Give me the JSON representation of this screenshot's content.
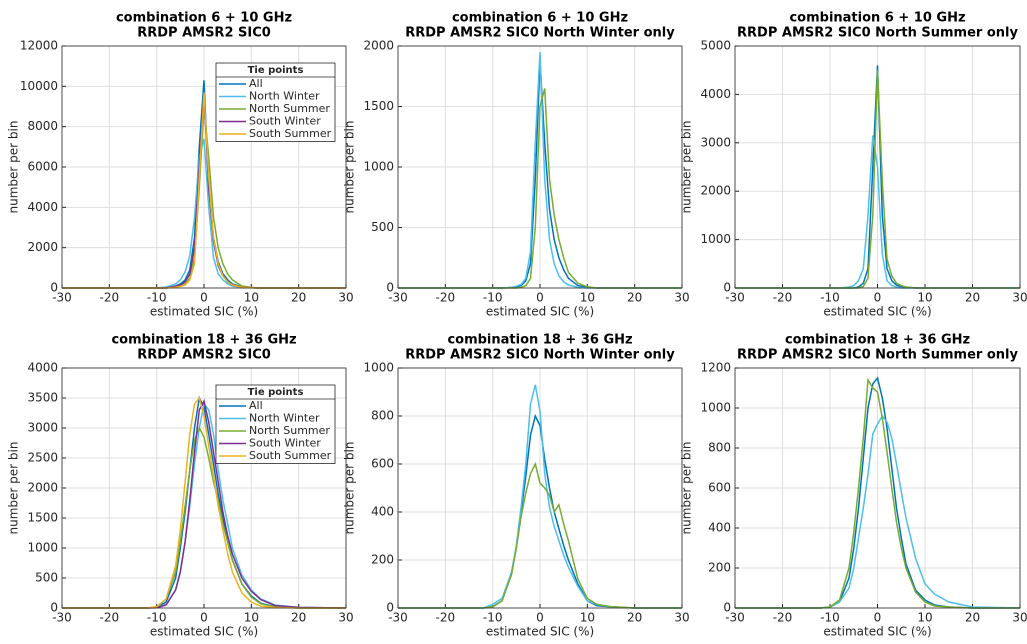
{
  "chart_data": [
    {
      "type": "line",
      "title": [
        "combination 6 + 10 GHz",
        "RRDP AMSR2 SIC0"
      ],
      "xlabel": "estimated SIC (%)",
      "ylabel": "number per bin",
      "x": [
        -30,
        -20,
        -12,
        -10,
        -8,
        -6,
        -5,
        -4,
        -3,
        -2,
        -1,
        0,
        1,
        2,
        3,
        4,
        5,
        6,
        8,
        10,
        12,
        15,
        20,
        30
      ],
      "xlim": [
        -30,
        30
      ],
      "xticks": [
        -30,
        -20,
        -10,
        0,
        10,
        20,
        30
      ],
      "ylim": [
        0,
        12000
      ],
      "yticks": [
        0,
        2000,
        4000,
        6000,
        8000,
        10000,
        12000
      ],
      "grid": true,
      "legend": true,
      "legend_title": "Tie points",
      "series": [
        {
          "name": "All",
          "color": "#0072bd",
          "values": [
            0,
            0,
            0,
            0,
            20,
            100,
            200,
            400,
            900,
            2500,
            7000,
            10300,
            5000,
            2500,
            1300,
            700,
            400,
            200,
            60,
            20,
            0,
            0,
            0,
            0
          ]
        },
        {
          "name": "North Winter",
          "color": "#4dbeee",
          "values": [
            0,
            0,
            0,
            0,
            50,
            200,
            400,
            800,
            1600,
            3500,
            6500,
            7400,
            4000,
            1500,
            700,
            400,
            200,
            100,
            30,
            10,
            0,
            0,
            0,
            0
          ]
        },
        {
          "name": "North Summer",
          "color": "#77ac30",
          "values": [
            0,
            0,
            0,
            0,
            0,
            50,
            100,
            200,
            500,
            1500,
            5000,
            9000,
            6500,
            3500,
            2000,
            1200,
            700,
            400,
            100,
            30,
            0,
            0,
            0,
            0
          ]
        },
        {
          "name": "South Winter",
          "color": "#7e2f8e",
          "values": [
            0,
            0,
            0,
            0,
            0,
            80,
            150,
            300,
            700,
            2000,
            6000,
            9600,
            5000,
            2300,
            1100,
            600,
            300,
            150,
            40,
            10,
            0,
            0,
            0,
            0
          ]
        },
        {
          "name": "South Summer",
          "color": "#edb120",
          "values": [
            0,
            0,
            0,
            0,
            0,
            40,
            80,
            150,
            400,
            1200,
            5500,
            9700,
            5500,
            2500,
            1200,
            600,
            300,
            150,
            40,
            10,
            0,
            0,
            0,
            0
          ]
        }
      ]
    },
    {
      "type": "line",
      "title": [
        "combination 6 + 10 GHz",
        "RRDP AMSR2 SIC0 North Winter only"
      ],
      "xlabel": "estimated SIC (%)",
      "ylabel": "number per bin",
      "x": [
        -30,
        -20,
        -12,
        -10,
        -8,
        -6,
        -5,
        -4,
        -3,
        -2,
        -1,
        0,
        1,
        2,
        3,
        4,
        5,
        6,
        8,
        10,
        12,
        15,
        20,
        30
      ],
      "xlim": [
        -30,
        30
      ],
      "xticks": [
        -30,
        -20,
        -10,
        0,
        10,
        20,
        30
      ],
      "ylim": [
        0,
        2000
      ],
      "yticks": [
        0,
        500,
        1000,
        1500,
        2000
      ],
      "grid": true,
      "legend": false,
      "series": [
        {
          "color": "#0072bd",
          "values": [
            0,
            0,
            0,
            0,
            0,
            5,
            10,
            20,
            60,
            200,
            900,
            1880,
            1200,
            650,
            400,
            250,
            150,
            80,
            20,
            5,
            0,
            0,
            0,
            0
          ]
        },
        {
          "color": "#4dbeee",
          "values": [
            0,
            0,
            0,
            0,
            0,
            5,
            15,
            30,
            80,
            300,
            1200,
            1950,
            900,
            400,
            200,
            100,
            50,
            25,
            5,
            0,
            0,
            0,
            0,
            0
          ]
        },
        {
          "color": "#77ac30",
          "values": [
            0,
            0,
            0,
            0,
            0,
            0,
            0,
            5,
            20,
            80,
            500,
            1500,
            1650,
            900,
            600,
            400,
            250,
            130,
            40,
            10,
            0,
            0,
            0,
            0
          ]
        }
      ]
    },
    {
      "type": "line",
      "title": [
        "combination 6 + 10 GHz",
        "RRDP AMSR2 SIC0 North Summer only"
      ],
      "xlabel": "estimated SIC (%)",
      "ylabel": "number per bin",
      "x": [
        -30,
        -20,
        -12,
        -10,
        -8,
        -6,
        -5,
        -4,
        -3,
        -2,
        -1,
        0,
        1,
        2,
        3,
        4,
        5,
        6,
        8,
        10,
        12,
        15,
        20,
        30
      ],
      "xlim": [
        -30,
        30
      ],
      "xticks": [
        -30,
        -20,
        -10,
        0,
        10,
        20,
        30
      ],
      "ylim": [
        0,
        5000
      ],
      "yticks": [
        0,
        1000,
        2000,
        3000,
        4000,
        5000
      ],
      "grid": true,
      "legend": false,
      "series": [
        {
          "color": "#0072bd",
          "values": [
            0,
            0,
            0,
            0,
            0,
            0,
            0,
            20,
            100,
            400,
            2500,
            4600,
            1500,
            400,
            150,
            60,
            30,
            15,
            0,
            0,
            0,
            0,
            0,
            0
          ]
        },
        {
          "color": "#4dbeee",
          "values": [
            0,
            0,
            0,
            0,
            0,
            20,
            50,
            150,
            400,
            1500,
            3150,
            2500,
            700,
            150,
            50,
            20,
            0,
            0,
            0,
            0,
            0,
            0,
            0,
            0
          ]
        },
        {
          "color": "#77ac30",
          "values": [
            0,
            0,
            0,
            0,
            0,
            0,
            0,
            0,
            30,
            200,
            1500,
            4500,
            2200,
            600,
            250,
            100,
            50,
            20,
            0,
            0,
            0,
            0,
            0,
            0
          ]
        }
      ]
    },
    {
      "type": "line",
      "title": [
        "combination 18 + 36 GHz",
        "RRDP AMSR2 SIC0"
      ],
      "xlabel": "estimated SIC (%)",
      "ylabel": "number per bin",
      "x": [
        -30,
        -20,
        -12,
        -10,
        -8,
        -6,
        -5,
        -4,
        -3,
        -2,
        -1,
        0,
        1,
        2,
        3,
        4,
        5,
        6,
        8,
        10,
        12,
        15,
        20,
        30
      ],
      "xlim": [
        -30,
        30
      ],
      "xticks": [
        -30,
        -20,
        -10,
        0,
        10,
        20,
        30
      ],
      "ylim": [
        0,
        4000
      ],
      "yticks": [
        0,
        500,
        1000,
        1500,
        2000,
        2500,
        3000,
        3500,
        4000
      ],
      "grid": true,
      "legend": true,
      "legend_title": "Tie points",
      "series": [
        {
          "name": "All",
          "color": "#0072bd",
          "values": [
            0,
            0,
            0,
            10,
            100,
            500,
            1000,
            1600,
            2300,
            3000,
            3500,
            3350,
            2900,
            2400,
            1900,
            1500,
            1100,
            800,
            400,
            200,
            80,
            20,
            0,
            0
          ]
        },
        {
          "name": "North Winter",
          "color": "#4dbeee",
          "values": [
            0,
            0,
            0,
            10,
            60,
            300,
            600,
            1100,
            1700,
            2400,
            3000,
            3400,
            3300,
            2900,
            2300,
            1800,
            1400,
            1000,
            550,
            300,
            150,
            50,
            10,
            0
          ]
        },
        {
          "name": "North Summer",
          "color": "#77ac30",
          "values": [
            0,
            0,
            0,
            20,
            150,
            600,
            1100,
            1700,
            2300,
            2800,
            3000,
            2850,
            2500,
            2100,
            1800,
            1400,
            1100,
            800,
            400,
            180,
            70,
            20,
            0,
            0
          ]
        },
        {
          "name": "South Winter",
          "color": "#7e2f8e",
          "values": [
            0,
            0,
            0,
            5,
            50,
            300,
            600,
            1100,
            1800,
            2600,
            3300,
            3450,
            3100,
            2600,
            2100,
            1600,
            1200,
            900,
            500,
            280,
            140,
            40,
            10,
            0
          ]
        },
        {
          "name": "South Summer",
          "color": "#edb120",
          "values": [
            0,
            0,
            0,
            20,
            150,
            700,
            1300,
            2100,
            2900,
            3400,
            3500,
            3200,
            2700,
            2200,
            1700,
            1300,
            900,
            600,
            250,
            100,
            30,
            10,
            0,
            0
          ]
        }
      ]
    },
    {
      "type": "line",
      "title": [
        "combination 18 + 36 GHz",
        "RRDP AMSR2 SIC0 North Winter only"
      ],
      "xlabel": "estimated SIC (%)",
      "ylabel": "number per bin",
      "x": [
        -30,
        -20,
        -12,
        -10,
        -8,
        -6,
        -5,
        -4,
        -3,
        -2,
        -1,
        0,
        1,
        2,
        3,
        4,
        5,
        6,
        8,
        10,
        12,
        15,
        20,
        30
      ],
      "xlim": [
        -30,
        30
      ],
      "xticks": [
        -30,
        -20,
        -10,
        0,
        10,
        20,
        30
      ],
      "ylim": [
        0,
        1000
      ],
      "yticks": [
        0,
        200,
        400,
        600,
        800,
        1000
      ],
      "grid": true,
      "legend": false,
      "series": [
        {
          "color": "#0072bd",
          "values": [
            0,
            0,
            0,
            5,
            30,
            150,
            250,
            400,
            550,
            720,
            800,
            760,
            620,
            500,
            400,
            330,
            260,
            200,
            100,
            30,
            10,
            5,
            0,
            0
          ]
        },
        {
          "color": "#4dbeee",
          "values": [
            0,
            0,
            0,
            15,
            40,
            150,
            260,
            420,
            600,
            850,
            930,
            820,
            560,
            420,
            340,
            280,
            220,
            170,
            90,
            30,
            15,
            5,
            0,
            0
          ]
        },
        {
          "color": "#77ac30",
          "values": [
            0,
            0,
            0,
            5,
            30,
            140,
            250,
            380,
            480,
            560,
            600,
            520,
            500,
            470,
            400,
            430,
            350,
            280,
            120,
            40,
            15,
            5,
            0,
            0
          ]
        }
      ]
    },
    {
      "type": "line",
      "title": [
        "combination 18 + 36 GHz",
        "RRDP AMSR2 SIC0 North Summer only"
      ],
      "xlabel": "estimated SIC (%)",
      "ylabel": "number per bin",
      "x": [
        -30,
        -20,
        -12,
        -10,
        -8,
        -6,
        -5,
        -4,
        -3,
        -2,
        -1,
        0,
        1,
        2,
        3,
        4,
        5,
        6,
        8,
        10,
        12,
        15,
        20,
        30
      ],
      "xlim": [
        -30,
        30
      ],
      "xticks": [
        -30,
        -20,
        -10,
        0,
        10,
        20,
        30
      ],
      "ylim": [
        0,
        1200
      ],
      "yticks": [
        0,
        200,
        400,
        600,
        800,
        1000,
        1200
      ],
      "grid": true,
      "legend": false,
      "series": [
        {
          "color": "#0072bd",
          "values": [
            0,
            0,
            0,
            5,
            30,
            150,
            300,
            500,
            750,
            1000,
            1120,
            1150,
            1050,
            900,
            700,
            500,
            350,
            220,
            90,
            40,
            15,
            5,
            0,
            0
          ]
        },
        {
          "color": "#4dbeee",
          "values": [
            0,
            0,
            0,
            5,
            30,
            100,
            200,
            350,
            500,
            670,
            870,
            920,
            960,
            930,
            850,
            720,
            580,
            450,
            250,
            120,
            70,
            30,
            5,
            0
          ]
        },
        {
          "color": "#77ac30",
          "values": [
            0,
            0,
            0,
            5,
            40,
            200,
            380,
            600,
            850,
            1140,
            1100,
            1080,
            950,
            780,
            600,
            430,
            300,
            200,
            80,
            30,
            10,
            5,
            0,
            0
          ]
        }
      ]
    }
  ]
}
